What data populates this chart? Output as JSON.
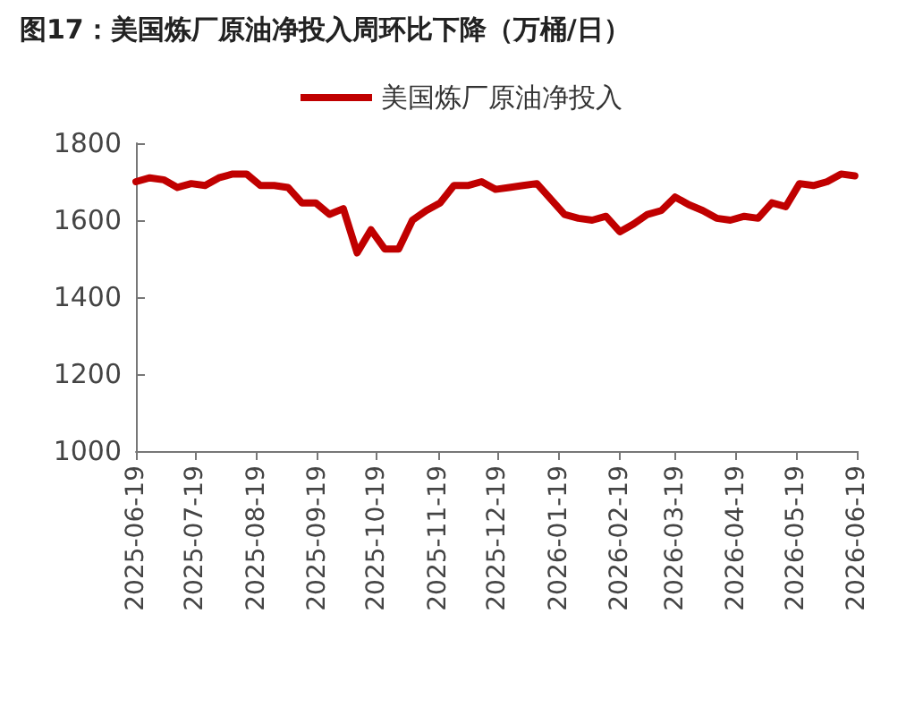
{
  "chart_data": {
    "type": "line",
    "title": "图17：美国炼厂原油净投入周环比下降（万桶/日）",
    "x": [
      "2025-06-19",
      "2025-06-26",
      "2025-07-03",
      "2025-07-10",
      "2025-07-17",
      "2025-07-24",
      "2025-07-31",
      "2025-08-07",
      "2025-08-14",
      "2025-08-21",
      "2025-08-28",
      "2025-09-04",
      "2025-09-11",
      "2025-09-18",
      "2025-09-25",
      "2025-10-02",
      "2025-10-09",
      "2025-10-16",
      "2025-10-23",
      "2025-10-30",
      "2025-11-06",
      "2025-11-13",
      "2025-11-20",
      "2025-11-27",
      "2025-12-04",
      "2025-12-11",
      "2025-12-18",
      "2025-12-25",
      "2026-01-01",
      "2026-01-08",
      "2026-01-15",
      "2026-01-22",
      "2026-01-29",
      "2026-02-05",
      "2026-02-12",
      "2026-02-19",
      "2026-02-26",
      "2026-03-05",
      "2026-03-12",
      "2026-03-19",
      "2026-03-26",
      "2026-04-02",
      "2026-04-09",
      "2026-04-16",
      "2026-04-23",
      "2026-04-30",
      "2026-05-07",
      "2026-05-14",
      "2026-05-21",
      "2026-05-28",
      "2026-06-04",
      "2026-06-11",
      "2026-06-18"
    ],
    "series": [
      {
        "name": "美国炼厂原油净投入",
        "color": "#c00000",
        "values": [
          1700,
          1710,
          1705,
          1685,
          1695,
          1690,
          1710,
          1720,
          1720,
          1690,
          1690,
          1685,
          1645,
          1645,
          1615,
          1630,
          1515,
          1575,
          1525,
          1525,
          1600,
          1625,
          1645,
          1690,
          1690,
          1700,
          1680,
          1685,
          1690,
          1695,
          1655,
          1615,
          1605,
          1600,
          1610,
          1570,
          1590,
          1615,
          1625,
          1660,
          1640,
          1625,
          1605,
          1600,
          1610,
          1605,
          1645,
          1635,
          1695,
          1690,
          1700,
          1720,
          1715
        ]
      }
    ],
    "xlim": [
      "2025-06-19",
      "2026-06-19"
    ],
    "xticks": [
      "2025-06-19",
      "2025-07-19",
      "2025-08-19",
      "2025-09-19",
      "2025-10-19",
      "2025-11-19",
      "2025-12-19",
      "2026-01-19",
      "2026-02-19",
      "2026-03-19",
      "2026-04-19",
      "2026-05-19",
      "2026-06-19"
    ],
    "ylim": [
      1000,
      1800
    ],
    "yticks": [
      1000,
      1200,
      1400,
      1600,
      1800
    ],
    "legend": "top",
    "grid": false,
    "marker": "none",
    "line_style": "solid"
  }
}
